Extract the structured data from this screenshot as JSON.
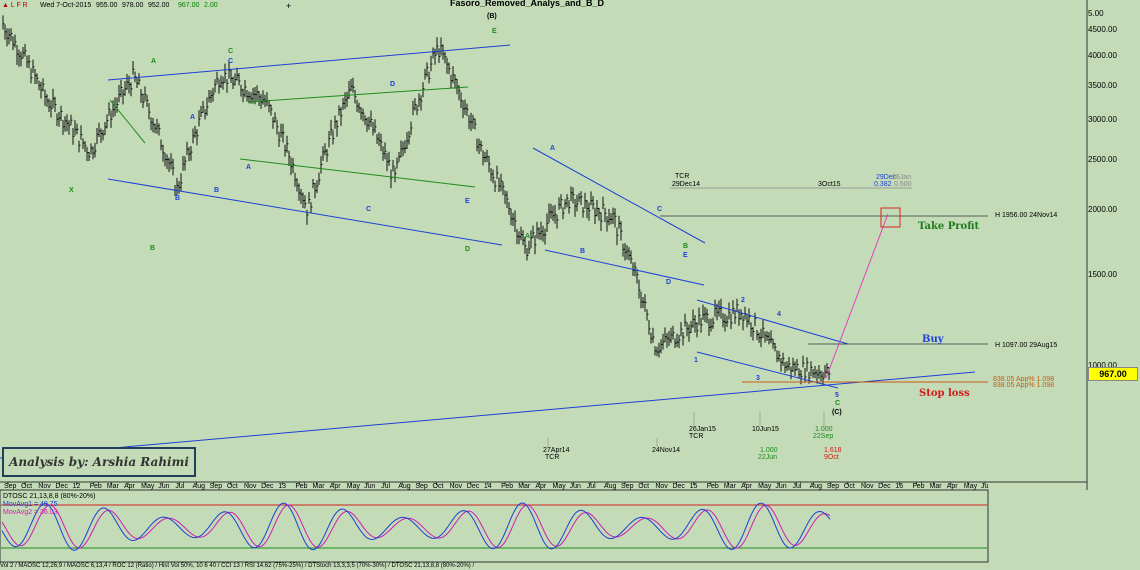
{
  "topbar": {
    "symbols": "▲ L F R",
    "date": "Wed 7-Oct-2015",
    "open": "955.00",
    "high": "978.00",
    "low": "952.00",
    "close": "967.00",
    "change": "2.00",
    "cross": "+"
  },
  "chart_title": "Fasoro_Removed_Analys_and_B_D",
  "price_axis": {
    "labels": [
      "5.00",
      "4500.00",
      "4000.00",
      "3500.00",
      "3000.00",
      "2500.00",
      "2000.00",
      "1500.00",
      "1000.00"
    ],
    "last_price": "967.00"
  },
  "x_axis": {
    "labels": [
      "Sep",
      "Oct",
      "Nov",
      "Dec",
      "12",
      "Feb",
      "Mar",
      "Apr",
      "May",
      "Jun",
      "Jul",
      "Aug",
      "Sep",
      "Oct",
      "Nov",
      "Dec",
      "13",
      "Feb",
      "Mar",
      "Apr",
      "May",
      "Jun",
      "Jul",
      "Aug",
      "Sep",
      "Oct",
      "Nov",
      "Dec",
      "14",
      "Feb",
      "Mar",
      "Apr",
      "May",
      "Jun",
      "Jul",
      "Aug",
      "Sep",
      "Oct",
      "Nov",
      "Dec",
      "15",
      "Feb",
      "Mar",
      "Apr",
      "May",
      "Jun",
      "Jul",
      "Aug",
      "Sep",
      "Oct",
      "Nov",
      "Dec",
      "16",
      "Feb",
      "Mar",
      "Apr",
      "May",
      "Ju"
    ]
  },
  "annotations": {
    "take_profit": "Take Profit",
    "buy": "Buy",
    "stop_loss": "Stop loss",
    "h_1956": "H 1956.00 24Nov14",
    "h_1097": "H 1097.00 29Aug15",
    "analysis_by": "Analysis by: Arshia Rahimi",
    "fib_left": "838.05 App% 1.098",
    "fib_right": "838.05 App% 1.098",
    "tcr_top_date": "29Dec14",
    "tcr_top": "TCR",
    "oct3": "3Oct15",
    "dec29": "29Dec",
    "jan26": "26Jan",
    "fib_0382": "0.382",
    "fib_0500": "0.500",
    "jan26_15": "26Jan15",
    "tcr_mid": "TCR",
    "jun10": "10Jun15",
    "r_1000_top": "1.000",
    "sep22": "22Sep",
    "apr27": "27Apr14",
    "tcr_bottom": "TCR",
    "nov24": "24Nov14",
    "r_1000": "1.000",
    "jun22": "22Jun",
    "r_1618": "1.618",
    "oct9": "9Oct"
  },
  "waves": [
    {
      "t": "A",
      "c": "#1e8a1e"
    },
    {
      "t": "C",
      "c": "#1e8a1e"
    },
    {
      "t": "C",
      "c": "#1f3fd6"
    },
    {
      "t": "X",
      "c": "#1e8a1e"
    },
    {
      "t": "B",
      "c": "#1e8a1e"
    },
    {
      "t": "A",
      "c": "#1f3fd6"
    },
    {
      "t": "B",
      "c": "#1f3fd6"
    },
    {
      "t": "A",
      "c": "#1f3fd6"
    },
    {
      "t": "B",
      "c": "#1f3fd6"
    },
    {
      "t": "C",
      "c": "#1f3fd6"
    },
    {
      "t": "D",
      "c": "#1f3fd6"
    },
    {
      "t": "E",
      "c": "#1f3fd6"
    },
    {
      "t": "D",
      "c": "#1e8a1e"
    },
    {
      "t": "(B)",
      "c": "#000000"
    },
    {
      "t": "E",
      "c": "#1e8a1e"
    },
    {
      "t": "A",
      "c": "#1f3fd6"
    },
    {
      "t": "A",
      "c": "#1e8a1e"
    },
    {
      "t": "B",
      "c": "#1f3fd6"
    },
    {
      "t": "C",
      "c": "#1f3fd6"
    },
    {
      "t": "B",
      "c": "#1e8a1e"
    },
    {
      "t": "E",
      "c": "#1f3fd6"
    },
    {
      "t": "D",
      "c": "#1f3fd6"
    },
    {
      "t": "1",
      "c": "#1f3fd6"
    },
    {
      "t": "2",
      "c": "#1f3fd6"
    },
    {
      "t": "3",
      "c": "#1f3fd6"
    },
    {
      "t": "4",
      "c": "#1f3fd6"
    },
    {
      "t": "5",
      "c": "#1f3fd6"
    },
    {
      "t": "C",
      "c": "#1e8a1e"
    },
    {
      "t": "(C)",
      "c": "#000000"
    }
  ],
  "oscillator": {
    "title": "DTOSC 21,13,8,8 (80%-20%)",
    "line1": "MovAvg1 = 49.75",
    "line2": "MovAvg2 = 36.03"
  },
  "bottombar": "Vol 2 / MAOSC 12,26,9 / MAOSC 6,13,4 / ROC 12 (Ratio) / Hist Vol 50%, 10 6 40 / CCI 13 / RSI 14.62 (75%-25%) / DTStoch 13,3,3,5 (70%-30%) / DTOSC 21,13,8,8 (80%-20%) /",
  "chart_data": {
    "type": "line",
    "title": "",
    "xlabel": "",
    "ylabel": "",
    "ylim": [
      700,
      5200
    ],
    "x": [
      "Sep 2011",
      "Nov 2011",
      "Jan 2012",
      "Apr 2012",
      "Jul 2012",
      "Oct 2012",
      "Jan 2013",
      "Apr 2013",
      "Jul 2013",
      "Oct 2013",
      "Dec 2013",
      "Jan 2014",
      "Apr 2014",
      "Jul 2014",
      "Nov 2014",
      "Jan 2015",
      "Apr 2015",
      "Jul 2015",
      "Sep 2015",
      "Oct 2015"
    ],
    "series": [
      {
        "values": [
          4600,
          3300,
          2600,
          3650,
          2200,
          3700,
          3300,
          2000,
          3450,
          2300,
          4150,
          2600,
          1700,
          2100,
          1956,
          1100,
          1250,
          1300,
          1000,
          967
        ]
      }
    ],
    "levels": {
      "take_profit": 1956,
      "buy": 1097,
      "stop_loss": 880
    }
  }
}
